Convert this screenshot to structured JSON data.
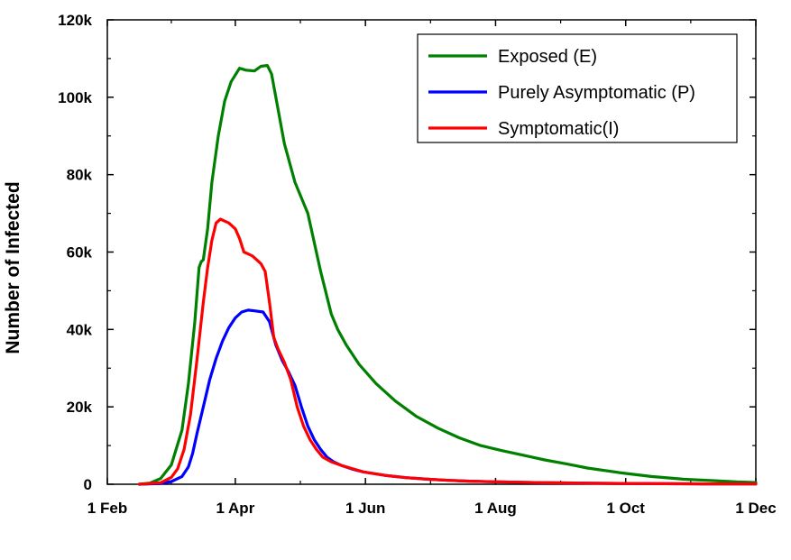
{
  "chart_data": {
    "type": "line",
    "title": "",
    "xlabel": "",
    "ylabel": "Number of Infected",
    "xlim": [
      0,
      304
    ],
    "ylim": [
      0,
      120000
    ],
    "x_ticks": [
      {
        "label": "1 Feb",
        "value": 0
      },
      {
        "label": "1 Apr",
        "value": 60
      },
      {
        "label": "1 Jun",
        "value": 121
      },
      {
        "label": "1 Aug",
        "value": 182
      },
      {
        "label": "1 Oct",
        "value": 243
      },
      {
        "label": "1 Dec",
        "value": 304
      }
    ],
    "y_ticks": [
      {
        "label": "0",
        "value": 0
      },
      {
        "label": "20k",
        "value": 20000
      },
      {
        "label": "40k",
        "value": 40000
      },
      {
        "label": "60k",
        "value": 60000
      },
      {
        "label": "80k",
        "value": 80000
      },
      {
        "label": "100k",
        "value": 100000
      },
      {
        "label": "120k",
        "value": 120000
      }
    ],
    "legend_position": "top-right",
    "series": [
      {
        "name": "Exposed (E)",
        "color": "#008000",
        "x": [
          15,
          20,
          25,
          30,
          35,
          38,
          41,
          43,
          44,
          45,
          47,
          49,
          52,
          55,
          58,
          62,
          65,
          69,
          72,
          75,
          77,
          80,
          83,
          88,
          94,
          100,
          105,
          108,
          112,
          118,
          126,
          135,
          145,
          155,
          165,
          175,
          185,
          195,
          205,
          215,
          225,
          240,
          255,
          270,
          285,
          295,
          304
        ],
        "y": [
          0,
          300,
          1500,
          5000,
          14000,
          26000,
          42000,
          56000,
          57500,
          58000,
          66000,
          78000,
          90000,
          99000,
          104000,
          107500,
          107000,
          106800,
          108000,
          108200,
          106000,
          97000,
          88000,
          78000,
          70000,
          55000,
          44000,
          40000,
          36000,
          31000,
          26000,
          21500,
          17500,
          14500,
          12000,
          10000,
          8700,
          7500,
          6300,
          5300,
          4200,
          3000,
          2000,
          1300,
          900,
          600,
          450
        ]
      },
      {
        "name": "Purely Asymptomatic (P)",
        "color": "#0000ff",
        "x": [
          15,
          25,
          30,
          35,
          38,
          40,
          42,
          45,
          48,
          51,
          54,
          57,
          60,
          63,
          66,
          69,
          73,
          76,
          79,
          82,
          85,
          88,
          91,
          94,
          97,
          100,
          103,
          106,
          110,
          115,
          120,
          130,
          140,
          150,
          160,
          170,
          180,
          200,
          220,
          240,
          260,
          280,
          304
        ],
        "y": [
          0,
          200,
          700,
          2000,
          4500,
          8000,
          13000,
          20000,
          27000,
          32500,
          37000,
          40500,
          43000,
          44500,
          45000,
          44800,
          44500,
          42000,
          36000,
          32000,
          29000,
          25500,
          20000,
          15000,
          11500,
          9000,
          7000,
          5800,
          4800,
          3900,
          3200,
          2300,
          1700,
          1300,
          1000,
          800,
          650,
          450,
          300,
          200,
          150,
          100,
          60
        ]
      },
      {
        "name": "Symptomatic(I)",
        "color": "#ff0000",
        "x": [
          15,
          25,
          30,
          33,
          36,
          39,
          42,
          45,
          47,
          49,
          51,
          53,
          55,
          57,
          60,
          62,
          64,
          66,
          68,
          70,
          72,
          74,
          76,
          78,
          80,
          83,
          86,
          89,
          92,
          95,
          98,
          101,
          105,
          110,
          115,
          120,
          130,
          140,
          150,
          160,
          170,
          180,
          200,
          220,
          240,
          260,
          280,
          304
        ],
        "y": [
          0,
          400,
          1800,
          4000,
          9000,
          18000,
          32000,
          47000,
          56000,
          63000,
          67500,
          68500,
          68000,
          67500,
          66000,
          63500,
          60000,
          59500,
          59000,
          58000,
          57000,
          55000,
          47000,
          38000,
          35000,
          31500,
          27000,
          20000,
          15000,
          11500,
          9000,
          7000,
          5800,
          4800,
          4000,
          3200,
          2300,
          1700,
          1300,
          1000,
          800,
          650,
          450,
          300,
          200,
          150,
          100,
          60
        ]
      }
    ]
  }
}
